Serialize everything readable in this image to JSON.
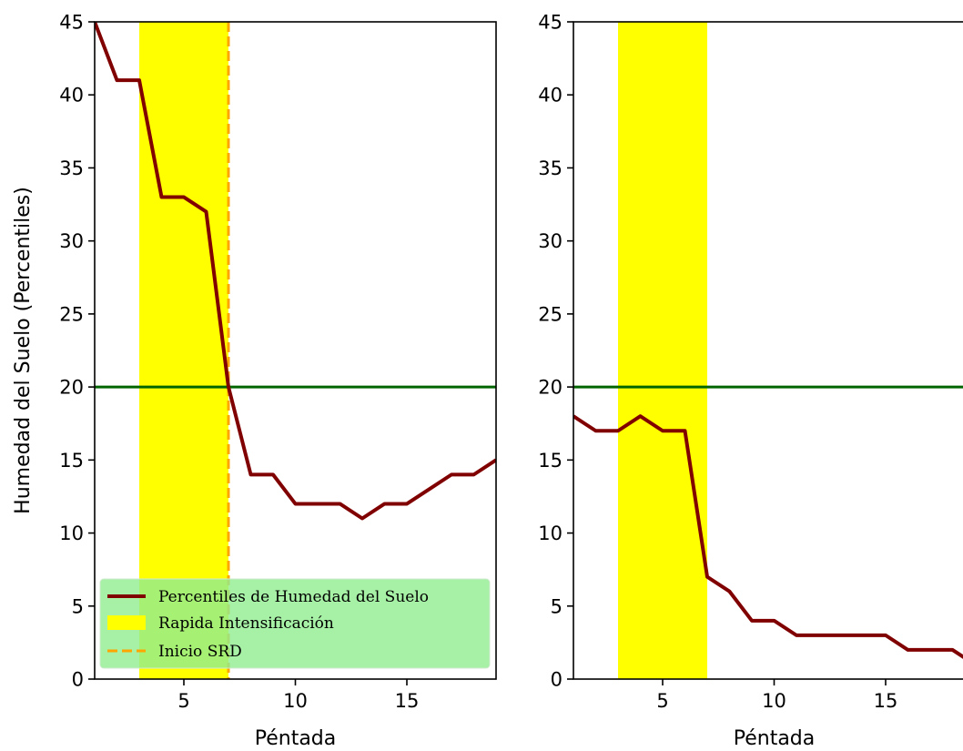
{
  "chart_data": [
    {
      "type": "line",
      "xlabel": "Péntada",
      "ylabel": "Humedad del Suelo (Percentiles)",
      "xlim": [
        1,
        19
      ],
      "ylim": [
        0,
        45
      ],
      "xticks": [
        5,
        10,
        15
      ],
      "yticks": [
        0,
        5,
        10,
        15,
        20,
        25,
        30,
        35,
        40,
        45
      ],
      "grid": false,
      "series": [
        {
          "name": "Percentiles de Humedad del Suelo",
          "color": "#800000",
          "x": [
            1,
            2,
            3,
            4,
            5,
            6,
            7,
            8,
            9,
            10,
            11,
            12,
            13,
            14,
            15,
            16,
            17,
            18,
            19
          ],
          "y": [
            45,
            41,
            41,
            33,
            33,
            32,
            20,
            14,
            14,
            12,
            12,
            12,
            11,
            12,
            12,
            13,
            14,
            14,
            15
          ]
        }
      ],
      "threshold": {
        "y": 20,
        "color": "#006400"
      },
      "shaded_region": {
        "name": "Rapida Intensificación",
        "x_start": 3,
        "x_end": 7,
        "color": "#ffff00"
      },
      "vline": {
        "name": "Inicio SRD",
        "x": 7,
        "color": "#ffa500"
      },
      "legend": {
        "position": "lower-left",
        "background": "#90ee90",
        "entries": [
          "Percentiles de Humedad del Suelo",
          "Rapida Intensificación",
          "Inicio SRD"
        ]
      }
    },
    {
      "type": "line",
      "xlabel": "Péntada",
      "ylabel": "",
      "xlim": [
        1,
        19
      ],
      "ylim": [
        0,
        45
      ],
      "xticks": [
        5,
        10,
        15
      ],
      "yticks": [
        0,
        5,
        10,
        15,
        20,
        25,
        30,
        35,
        40,
        45
      ],
      "grid": false,
      "series": [
        {
          "name": "Percentiles de Humedad del Suelo",
          "color": "#800000",
          "x": [
            1,
            2,
            3,
            4,
            5,
            6,
            7,
            8,
            9,
            10,
            11,
            12,
            13,
            14,
            15,
            16,
            17,
            18,
            19
          ],
          "y": [
            18,
            17,
            17,
            18,
            17,
            17,
            7,
            6,
            4,
            4,
            3,
            3,
            3,
            3,
            3,
            2,
            2,
            2,
            1
          ]
        }
      ],
      "threshold": {
        "y": 20,
        "color": "#006400"
      },
      "shaded_region": {
        "name": "Rapida Intensificación",
        "x_start": 3,
        "x_end": 7,
        "color": "#ffff00"
      }
    }
  ]
}
